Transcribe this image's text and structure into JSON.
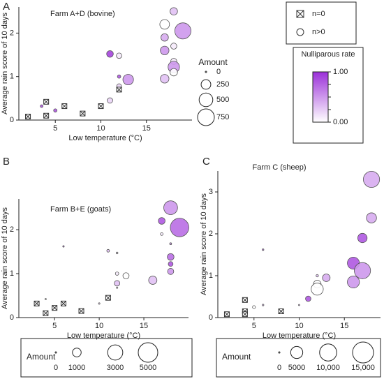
{
  "chart_data": [
    {
      "type": "bubble",
      "panel": "A",
      "title": "Farm A+D (bovine)",
      "x_label": "Low temperature (°C)",
      "y_label": "Average rain score of 10 days",
      "xlim": [
        1,
        20
      ],
      "xticks": [
        5,
        10,
        15
      ],
      "ylim": [
        0,
        2.6
      ],
      "yticks": [
        0,
        1,
        2
      ],
      "x": [
        2,
        3.5,
        4,
        4,
        5,
        6,
        8,
        10,
        11,
        11,
        12,
        12,
        12,
        12,
        13,
        17,
        17,
        17,
        17,
        18,
        18,
        18,
        18,
        18,
        19
      ],
      "y": [
        0.08,
        0.32,
        0.42,
        0.1,
        0.22,
        0.32,
        0.15,
        0.32,
        0.45,
        1.52,
        1.48,
        1.0,
        0.78,
        0.7,
        0.93,
        0.95,
        1.9,
        2.2,
        1.6,
        2.5,
        1.7,
        1.35,
        1.22,
        1.1,
        2.05
      ],
      "sizes": [
        0,
        20,
        0,
        0,
        30,
        0,
        0,
        0,
        80,
        120,
        80,
        30,
        60,
        0,
        300,
        200,
        150,
        250,
        200,
        150,
        100,
        100,
        350,
        150,
        700
      ],
      "rates": [
        0,
        0.8,
        0,
        0,
        0.8,
        0,
        0,
        0,
        0.2,
        0.9,
        0.1,
        0.8,
        0.2,
        0,
        0.5,
        0.3,
        0.4,
        0,
        0.5,
        0.3,
        0.1,
        0.1,
        0.5,
        0,
        0.5
      ],
      "no_cases": [
        true,
        false,
        true,
        true,
        false,
        true,
        true,
        true,
        false,
        false,
        false,
        false,
        false,
        true,
        false,
        false,
        false,
        false,
        false,
        false,
        false,
        false,
        false,
        false,
        false
      ],
      "size_legend": {
        "title": "Amount",
        "ticks": [
          0,
          250,
          500,
          750
        ]
      }
    },
    {
      "type": "bubble",
      "panel": "B",
      "title": "Farm B+E (goats)",
      "x_label": "Low temperature (°C)",
      "y_label": "Average rain score of 10 days",
      "xlim": [
        1,
        20
      ],
      "xticks": [
        5,
        10,
        15
      ],
      "ylim": [
        0,
        2.7
      ],
      "yticks": [
        0,
        1,
        2
      ],
      "x": [
        3,
        4,
        4,
        5,
        6,
        6,
        8,
        10,
        11,
        11,
        12,
        12,
        12,
        12,
        13,
        16,
        17,
        17,
        18,
        18,
        18,
        18,
        18,
        19
      ],
      "y": [
        0.32,
        0.42,
        0.1,
        0.22,
        0.32,
        1.62,
        0.15,
        0.32,
        0.45,
        1.52,
        1.47,
        1.0,
        0.78,
        0.68,
        0.95,
        0.85,
        2.2,
        1.9,
        2.5,
        1.68,
        1.38,
        1.22,
        1.05,
        2.05
      ],
      "sizes": [
        0,
        20,
        0,
        0,
        0,
        30,
        0,
        30,
        0,
        100,
        40,
        150,
        400,
        30,
        500,
        900,
        600,
        100,
        2500,
        50,
        600,
        300,
        500,
        4500
      ],
      "rates": [
        0,
        0,
        0,
        0,
        0,
        0.7,
        0,
        0.2,
        0,
        0.3,
        0.1,
        0.1,
        0.3,
        0.1,
        0,
        0.3,
        0.8,
        0.1,
        0.5,
        0.5,
        0.7,
        0.8,
        0.5,
        0.7
      ],
      "no_cases": [
        true,
        false,
        true,
        true,
        true,
        false,
        true,
        false,
        true,
        false,
        false,
        false,
        false,
        false,
        false,
        false,
        false,
        false,
        false,
        false,
        false,
        false,
        false,
        false
      ],
      "size_legend": {
        "title": "Amount",
        "ticks": [
          0,
          1000,
          3000,
          5000
        ]
      }
    },
    {
      "type": "bubble",
      "panel": "C",
      "title": "Farm C (sheep)",
      "x_label": "Low temperature (°C)",
      "y_label": "Average rain score of 10 days",
      "xlim": [
        1,
        19
      ],
      "xticks": [
        5,
        10,
        15
      ],
      "ylim": [
        0,
        3.5
      ],
      "yticks": [
        0,
        1,
        2,
        3
      ],
      "x": [
        2,
        4,
        4,
        4,
        5,
        6,
        6,
        8,
        10,
        11,
        12,
        12,
        12,
        13,
        16,
        16,
        17,
        17,
        18,
        18
      ],
      "y": [
        0.08,
        0.42,
        0.15,
        0.08,
        0.25,
        1.62,
        0.3,
        0.15,
        0.3,
        0.45,
        1.0,
        0.8,
        0.68,
        0.95,
        0.85,
        1.3,
        1.12,
        1.9,
        2.38,
        3.3
      ],
      "sizes": [
        0,
        0,
        0,
        0,
        300,
        100,
        100,
        0,
        50,
        1000,
        200,
        2000,
        5000,
        2000,
        5000,
        5000,
        9000,
        3000,
        3500,
        9000
      ],
      "rates": [
        0,
        0,
        0,
        0,
        0,
        0.6,
        0.3,
        0,
        0.3,
        0.8,
        0.3,
        0,
        0,
        0.4,
        0.5,
        0.8,
        0.5,
        0.8,
        0.4,
        0.4
      ],
      "no_cases": [
        true,
        true,
        true,
        true,
        false,
        false,
        false,
        true,
        false,
        false,
        false,
        false,
        false,
        false,
        false,
        false,
        false,
        false,
        false,
        false
      ],
      "size_legend": {
        "title": "Amount",
        "ticks": [
          0,
          5000,
          {
            "value": 10000,
            "label": "10,000"
          },
          {
            "value": 15000,
            "label": "15,000"
          }
        ]
      }
    }
  ],
  "symbol_legend": {
    "labels": [
      "n=0",
      "n>0"
    ]
  },
  "color_legend": {
    "title": "Nulliparous rate",
    "color_low": "#ffffff",
    "color_high": "#9b30d9",
    "ticks": [
      {
        "value": 1,
        "label": "1.00"
      },
      0.75,
      0.5,
      0.25,
      {
        "value": 0,
        "label": "0.00"
      }
    ]
  }
}
